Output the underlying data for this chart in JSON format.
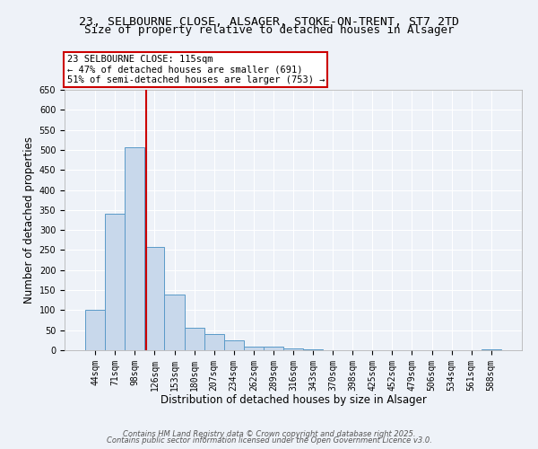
{
  "title_line1": "23, SELBOURNE CLOSE, ALSAGER, STOKE-ON-TRENT, ST7 2TD",
  "title_line2": "Size of property relative to detached houses in Alsager",
  "xlabel": "Distribution of detached houses by size in Alsager",
  "ylabel": "Number of detached properties",
  "bin_labels": [
    "44sqm",
    "71sqm",
    "98sqm",
    "126sqm",
    "153sqm",
    "180sqm",
    "207sqm",
    "234sqm",
    "262sqm",
    "289sqm",
    "316sqm",
    "343sqm",
    "370sqm",
    "398sqm",
    "425sqm",
    "452sqm",
    "479sqm",
    "506sqm",
    "534sqm",
    "561sqm",
    "588sqm"
  ],
  "bar_heights": [
    100,
    340,
    507,
    257,
    140,
    55,
    40,
    25,
    8,
    10,
    5,
    3,
    1,
    1,
    1,
    1,
    1,
    1,
    1,
    1,
    3
  ],
  "bar_color": "#c8d8eb",
  "bar_edge_color": "#5a9ac8",
  "vline_x": 2.58,
  "vline_color": "#cc0000",
  "annotation_text": "23 SELBOURNE CLOSE: 115sqm\n← 47% of detached houses are smaller (691)\n51% of semi-detached houses are larger (753) →",
  "annotation_box_color": "#ffffff",
  "annotation_box_edge_color": "#cc0000",
  "ylim": [
    0,
    650
  ],
  "yticks": [
    0,
    50,
    100,
    150,
    200,
    250,
    300,
    350,
    400,
    450,
    500,
    550,
    600,
    650
  ],
  "background_color": "#eef2f8",
  "grid_color": "#ffffff",
  "footer_line1": "Contains HM Land Registry data © Crown copyright and database right 2025.",
  "footer_line2": "Contains public sector information licensed under the Open Government Licence v3.0.",
  "title_fontsize": 9.5,
  "subtitle_fontsize": 9,
  "axis_label_fontsize": 8.5,
  "tick_fontsize": 7,
  "annotation_fontsize": 7.5,
  "footer_fontsize": 6
}
